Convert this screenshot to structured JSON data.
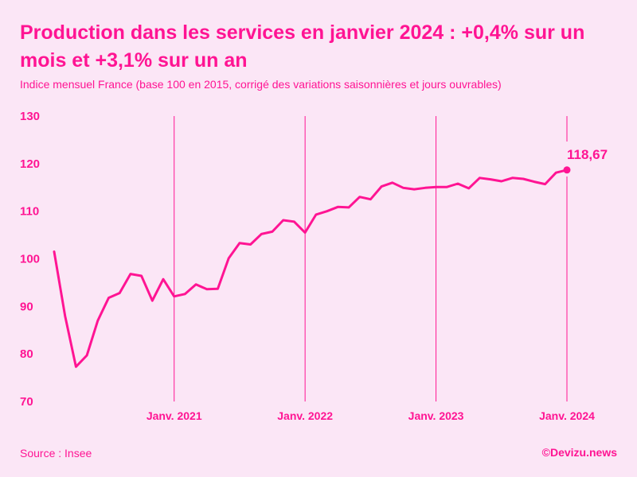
{
  "header": {
    "title": "Production dans les services en janvier 2024 : +0,4% sur un mois et +3,1% sur un an",
    "subtitle": "Indice mensuel France (base 100 en 2015, corrigé des variations saisonnières et jours ouvrables)"
  },
  "footer": {
    "source": "Source : Insee",
    "credit": "©Devizu.news"
  },
  "colors": {
    "background": "#fbe6f6",
    "accent": "#ff1493"
  },
  "chart_data": {
    "type": "line",
    "title": "Production dans les services en janvier 2024 : +0,4% sur un mois et +3,1% sur un an",
    "subtitle": "Indice mensuel France (base 100 en 2015, corrigé des variations saisonnières et jours ouvrables)",
    "xlabel": "",
    "ylabel": "",
    "ylim": [
      70,
      130
    ],
    "yticks": [
      70,
      80,
      90,
      100,
      110,
      120,
      130
    ],
    "ytick_labels": [
      "70",
      "80",
      "90",
      "100",
      "110",
      "120",
      "130"
    ],
    "xticks": [
      {
        "index": 11,
        "label": "Janv. 2021"
      },
      {
        "index": 23,
        "label": "Janv. 2022"
      },
      {
        "index": 35,
        "label": "Janv. 2023"
      },
      {
        "index": 47,
        "label": "Janv. 2024"
      }
    ],
    "grid": "vertical lines at each January",
    "end_label": "118,67",
    "series": [
      {
        "name": "Production dans les services",
        "values": [
          101.5,
          88.0,
          77.3,
          79.7,
          87.0,
          91.8,
          92.8,
          96.8,
          96.4,
          91.2,
          95.7,
          92.1,
          92.6,
          94.6,
          93.6,
          93.7,
          100.1,
          103.3,
          103.0,
          105.2,
          105.7,
          108.1,
          107.8,
          105.5,
          109.3,
          110.0,
          110.9,
          110.8,
          113.0,
          112.5,
          115.2,
          116.0,
          114.9,
          114.6,
          114.9,
          115.1,
          115.1,
          115.8,
          114.8,
          117.0,
          116.7,
          116.3,
          117.0,
          116.8,
          116.2,
          115.7,
          118.1,
          118.67
        ]
      }
    ]
  }
}
